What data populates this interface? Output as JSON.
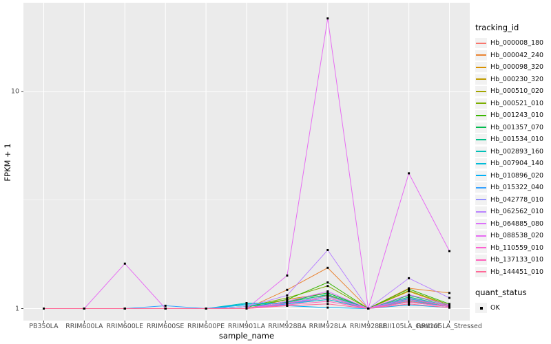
{
  "figure": {
    "background": "#FFFFFF",
    "panel_background": "#EBEBEB",
    "gridline_color": "#FFFFFF",
    "axis_text_color": "#4D4D4D",
    "tick_color": "#333333",
    "legend_key_background": "#F2F2F2"
  },
  "chart_data": {
    "type": "line",
    "title": "",
    "xlabel": "sample_name",
    "ylabel": "FPKM + 1",
    "y_scale": "log10",
    "ylim": [
      0.88,
      25.6
    ],
    "y_ticks": [
      {
        "value": 1,
        "label": "1"
      },
      {
        "value": 10,
        "label": "10"
      }
    ],
    "y_minor_breaks": [
      3.162
    ],
    "grid": true,
    "legend_position": "right",
    "categories": [
      "PB350LA",
      "RRIM600LA",
      "RRIM600LE",
      "RRIM600SE",
      "RRIM600PE",
      "RRIM901LA",
      "RRIM928BA",
      "RRIM928LA",
      "RRIM928LE",
      "RRII105LA_Control",
      "RRII105LA_Stressed"
    ],
    "marker": {
      "shape": "square",
      "color": "#000000",
      "size": 3
    },
    "legend_tracking_title": "tracking_id",
    "legend_quant_title": "quant_status",
    "legend_quant_items": [
      {
        "label": "OK"
      }
    ],
    "series": [
      {
        "name": "Hb_000008_180",
        "color": "#F8766D",
        "values": [
          1,
          1,
          1,
          1,
          1,
          1,
          1.05,
          1.1,
          1,
          1.08,
          1.02
        ]
      },
      {
        "name": "Hb_000042_240",
        "color": "#EA8331",
        "values": [
          1,
          1,
          1,
          1,
          1,
          1,
          1.22,
          1.54,
          1,
          1.24,
          1.18
        ]
      },
      {
        "name": "Hb_000098_320",
        "color": "#D89000",
        "values": [
          1,
          1,
          1,
          1,
          1,
          1,
          1.1,
          1.18,
          1,
          1.2,
          1.03
        ]
      },
      {
        "name": "Hb_000230_320",
        "color": "#C09B00",
        "values": [
          1,
          1,
          1,
          1,
          1,
          1,
          1.08,
          1.15,
          1,
          1.13,
          1.03
        ]
      },
      {
        "name": "Hb_000510_020",
        "color": "#A3A500",
        "values": [
          1,
          1,
          1,
          1,
          1,
          1,
          1.06,
          1.12,
          1,
          1.1,
          1.02
        ]
      },
      {
        "name": "Hb_000521_010",
        "color": "#7CAE00",
        "values": [
          1,
          1,
          1,
          1,
          1,
          1.02,
          1.12,
          1.27,
          1,
          1.21,
          1.04
        ]
      },
      {
        "name": "Hb_001243_010",
        "color": "#39B600",
        "values": [
          1,
          1,
          1,
          1,
          1,
          1.02,
          1.1,
          1.32,
          1,
          1.23,
          1.05
        ]
      },
      {
        "name": "Hb_001357_070",
        "color": "#00BB4E",
        "values": [
          1,
          1,
          1,
          1,
          1,
          1,
          1.08,
          1.18,
          1,
          1.15,
          1.04
        ]
      },
      {
        "name": "Hb_001534_010",
        "color": "#00C087",
        "values": [
          1,
          1,
          1,
          1,
          1,
          1.02,
          1.07,
          1.16,
          1,
          1.13,
          1.03
        ]
      },
      {
        "name": "Hb_002893_160",
        "color": "#00C0B8",
        "values": [
          1,
          1,
          1,
          1,
          1,
          1.06,
          1.06,
          1.14,
          1,
          1.11,
          1.03
        ]
      },
      {
        "name": "Hb_007904_140",
        "color": "#00BCD8",
        "values": [
          1,
          1,
          1,
          1,
          1,
          1.05,
          1.05,
          1.1,
          1,
          1.07,
          1.02
        ]
      },
      {
        "name": "Hb_010896_020",
        "color": "#00B0F6",
        "values": [
          1,
          1,
          1,
          1,
          1,
          1.04,
          1.03,
          1.01,
          1,
          1.04,
          1.01
        ]
      },
      {
        "name": "Hb_015322_040",
        "color": "#35A2FF",
        "values": [
          1,
          1,
          1,
          1.03,
          1,
          1,
          1.05,
          1.12,
          1,
          1.09,
          1.02
        ]
      },
      {
        "name": "Hb_042778_010",
        "color": "#9590FF",
        "values": [
          1,
          1,
          1,
          1,
          1,
          1,
          1.06,
          1.14,
          1,
          1.12,
          1.03
        ]
      },
      {
        "name": "Hb_062562_010",
        "color": "#B983FF",
        "values": [
          1,
          1,
          1,
          1,
          1,
          1.02,
          1.15,
          1.86,
          1,
          1.38,
          1.12
        ]
      },
      {
        "name": "Hb_064885_080",
        "color": "#DC71FA",
        "values": [
          1,
          1,
          1,
          1,
          1,
          1,
          1.08,
          1.2,
          1,
          1.16,
          1.04
        ]
      },
      {
        "name": "Hb_088538_020",
        "color": "#E76BF3",
        "values": [
          1,
          1,
          1.61,
          1,
          1,
          1,
          1.42,
          21.7,
          1,
          4.2,
          1.84
        ]
      },
      {
        "name": "Hb_110559_010",
        "color": "#FD61D1",
        "values": [
          1,
          1,
          1,
          1,
          1,
          1,
          1.06,
          1.12,
          1,
          1.1,
          1.03
        ]
      },
      {
        "name": "Hb_137133_010",
        "color": "#FF62BC",
        "values": [
          1,
          1,
          1,
          1,
          1,
          1,
          1.04,
          1.08,
          1,
          1.07,
          1.02
        ]
      },
      {
        "name": "Hb_144451_010",
        "color": "#FF6A98",
        "values": [
          1,
          1,
          1,
          1,
          1,
          1,
          1.03,
          1.05,
          1,
          1.05,
          1.01
        ]
      }
    ]
  }
}
